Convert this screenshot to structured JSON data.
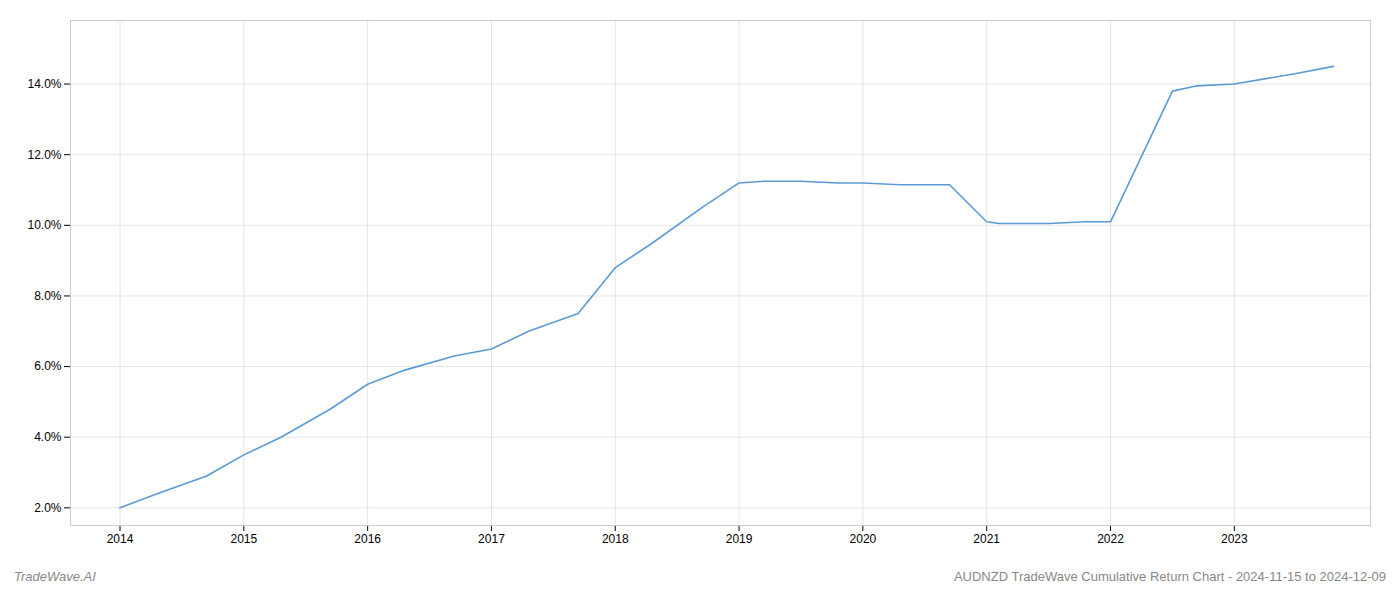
{
  "chart_data": {
    "type": "line",
    "title": "AUDNZD TradeWave Cumulative Return Chart - 2024-11-15 to 2024-12-09",
    "annotations": [
      "TradeWave.AI"
    ],
    "x": [
      2014.0,
      2014.3,
      2014.7,
      2015.0,
      2015.3,
      2015.7,
      2016.0,
      2016.3,
      2016.7,
      2017.0,
      2017.3,
      2017.7,
      2018.0,
      2018.3,
      2018.7,
      2019.0,
      2019.2,
      2019.5,
      2019.8,
      2020.0,
      2020.3,
      2020.7,
      2021.0,
      2021.1,
      2021.5,
      2021.8,
      2022.0,
      2022.5,
      2022.7,
      2023.0,
      2023.5,
      2023.8
    ],
    "values": [
      2.0,
      2.4,
      2.9,
      3.5,
      4.0,
      4.8,
      5.5,
      5.9,
      6.3,
      6.5,
      7.0,
      7.5,
      8.8,
      9.5,
      10.5,
      11.2,
      11.25,
      11.25,
      11.2,
      11.2,
      11.15,
      11.15,
      10.1,
      10.05,
      10.05,
      10.1,
      10.1,
      13.8,
      13.95,
      14.0,
      14.3,
      14.5
    ],
    "color": "#5b9bd5",
    "xlim": [
      2013.6,
      2024.1
    ],
    "ylim": [
      1.5,
      15.8
    ],
    "xticks": [
      2014,
      2015,
      2016,
      2017,
      2018,
      2019,
      2020,
      2021,
      2022,
      2023
    ],
    "yticks": [
      {
        "value": 2.0,
        "label": "2.0%"
      },
      {
        "value": 4.0,
        "label": "4.0%"
      },
      {
        "value": 6.0,
        "label": "6.0%"
      },
      {
        "value": 8.0,
        "label": "8.0%"
      },
      {
        "value": 10.0,
        "label": "10.0%"
      },
      {
        "value": 12.0,
        "label": "12.0%"
      },
      {
        "value": 14.0,
        "label": "14.0%"
      }
    ],
    "grid": true
  }
}
